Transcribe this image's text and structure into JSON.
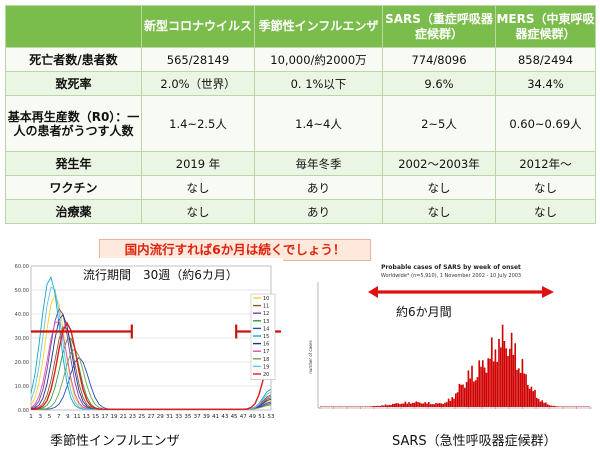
{
  "table": {
    "columns": [
      "",
      "新型コロナウイルス",
      "季節性インフルエンザ",
      "SARS（重症呼吸器症候群）",
      "MERS（中東呼吸器症候群）"
    ],
    "rows": [
      [
        "死亡者数/患者数",
        "565/28149",
        "10,000/約2000万",
        "774/8096",
        "858/2494"
      ],
      [
        "致死率",
        "2.0%（世界）",
        "0. 1%以下",
        "9.6%",
        "34.4%"
      ],
      [
        "基本再生産数（R0）：一人の患者がうつす人数",
        "1.4~2.5人",
        "1.4~4人",
        "2~5人",
        "0.60~0.69人"
      ],
      [
        "発生年",
        "2019 年",
        "毎年冬季",
        "2002～2003年",
        "2012年～"
      ],
      [
        "ワクチン",
        "なし",
        "あり",
        "なし",
        "なし"
      ],
      [
        "治療薬",
        "なし",
        "あり",
        "なし",
        "なし"
      ]
    ]
  },
  "banner": "国内流行すれば6か月は続くでしょう！",
  "flu_chart": {
    "annotation": "流行期間　30週（約6カ月）",
    "caption": "季節性インフルエンザ",
    "y_ticks": [
      "60.00",
      "50.00",
      "40.00",
      "30.00",
      "20.00",
      "10.00",
      "0.00"
    ],
    "x_ticks": [
      "1",
      "3",
      "5",
      "7",
      "9",
      "11",
      "13",
      "15",
      "17",
      "19",
      "21",
      "23",
      "25",
      "27",
      "29",
      "31",
      "33",
      "35",
      "37",
      "39",
      "41",
      "43",
      "45",
      "47",
      "49",
      "51",
      "53"
    ],
    "legend": [
      "10",
      "11",
      "12",
      "13",
      "14",
      "15",
      "16",
      "17",
      "18",
      "19",
      "20"
    ],
    "legend_colors": [
      "#ffd21f",
      "#8a5a2b",
      "#7b3fa0",
      "#2e9e3e",
      "#1f4fbf",
      "#11a7c9",
      "#1b2f8c",
      "#d94fb6",
      "#6fa44a",
      "#5ec3ea",
      "#e31a1c"
    ],
    "period_color": "#cc1111"
  },
  "sars_chart": {
    "title": "Probable cases of SARS by week of onset",
    "subtitle": "Worldwide* (n=5,910), 1 November 2002 - 10 July 2003",
    "annotation": "約6か月間",
    "caption": "SARS（急性呼吸器症候群）",
    "ylabel": "number of cases",
    "bar_color": "#d00000"
  }
}
